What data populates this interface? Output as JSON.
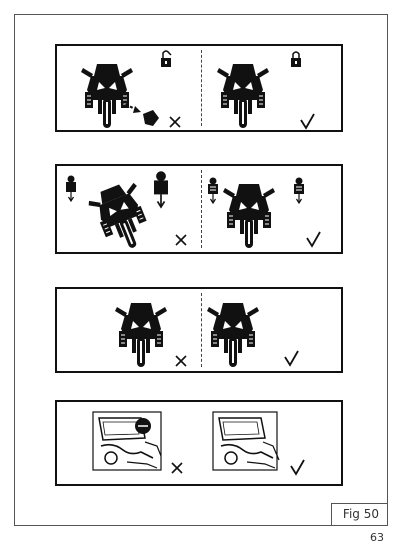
{
  "figure": {
    "label": "Fig 50",
    "page_number": "63"
  },
  "panels": [
    {
      "name": "lock-comparison",
      "left": "wrong",
      "right": "correct"
    },
    {
      "name": "load-balance-comparison",
      "left": "wrong",
      "right": "correct"
    },
    {
      "name": "upright-comparison",
      "left": "wrong",
      "right": "correct"
    },
    {
      "name": "case-mount-comparison",
      "left": "wrong",
      "right": "correct"
    }
  ],
  "colors": {
    "ink": "#111111",
    "frame": "#555555"
  }
}
